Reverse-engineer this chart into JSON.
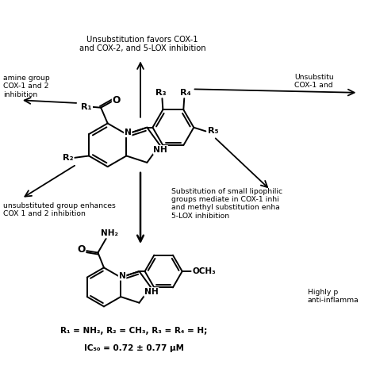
{
  "top_text": "Unsubstitution favors COX-1\nand COX-2, and 5-LOX inhibition",
  "left_text": "amine group\nCOX-1 and 2\ninhibition",
  "right_text": "Unsubstitu\nCOX-1 and",
  "bottom_left_text": "unsubstituted group enhances\nCOX 1 and 2 inhibition",
  "bottom_right_text": "Substitution of small lipophilic\ngroups mediate in COX-1 inhi\nand methyl substitution enha\n5-LOX inhibition",
  "bottom_right2_text": "Highly p\nanti-inflamma",
  "label_text_line1": "R₁ = NH₂, R₂ = CH₃, R₃ = R₄ = H;",
  "label_text_line2": "IC₅₀ = 0.72 ± 0.77 μM"
}
